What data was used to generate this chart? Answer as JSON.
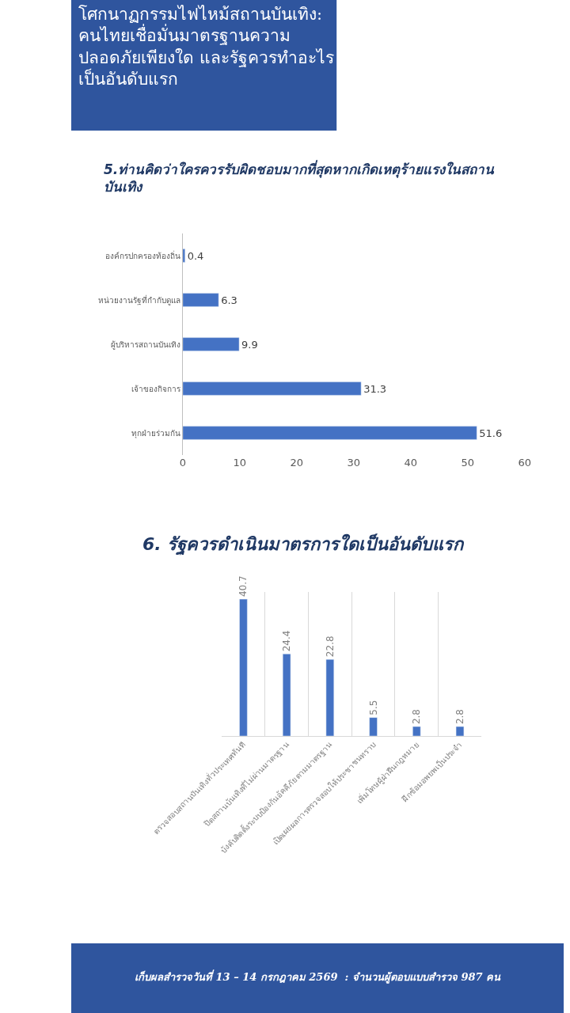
{
  "chart_data": [
    {
      "type": "bar",
      "title": "โศกนาฏกรรมไฟไหม้สถานบันเทิง:\nคนไทยเชื่อมั่นมาตรฐานความ\nปลอดภัยเพียงใด และรัฐควรทำอะไร\nเป็นอันดับแรก",
      "subtitle": "5.ท่านคิดว่าใครควรรับผิดชอบมากที่สุดหากเกิดเหตุร้ายแรงในสถาน\nบันเทิง",
      "orientation": "horizontal",
      "categories": [
        "องค์กรปกครองท้องถิ่น",
        "หน่วยงานรัฐที่กำกับดูแล",
        "ผู้บริหารสถานบันเทิง",
        "เจ้าของกิจการ",
        "ทุกฝ่ายร่วมกัน"
      ],
      "values": [
        0.4,
        6.3,
        9.9,
        31.3,
        51.6
      ],
      "color": "#4472c4",
      "xlim": [
        0,
        60
      ],
      "xticks": [
        0,
        10,
        20,
        30,
        40,
        50,
        60
      ],
      "data_labels": true,
      "grid": false
    },
    {
      "type": "bar",
      "title": "6. รัฐควรดำเนินมาตรการใดเป็นอันดับแรก",
      "categories": [
        "ตรวจสอบสถานบันเทิงทั่วประเทศทันที",
        "ปิดสถานบันเทิงที่ไม่ผ่านมาตรฐาน",
        "บังคับติดตั้งระบบป้องกันอัคคีภัยตามมาตรฐาน",
        "เปิดเผยผลการตรวจสอบให้ประชาชนทราบ",
        "เพิ่มโทษผู้ฝ่าฝืนกฎหมาย",
        "ฝึกซ้อมอพยพเป็นประจำ"
      ],
      "values": [
        40.7,
        24.4,
        22.8,
        5.5,
        2.8,
        2.8
      ],
      "color": "#4472c4",
      "data_labels": true,
      "grid": "x",
      "tick_labels": "x",
      "annotations": [
        "เก็บผลสำรวจวันที่ 13 – 14 กรกฎาคม 2569  : จำนวนผู้ตอบแบบสำรวจ 987 คน"
      ]
    }
  ]
}
